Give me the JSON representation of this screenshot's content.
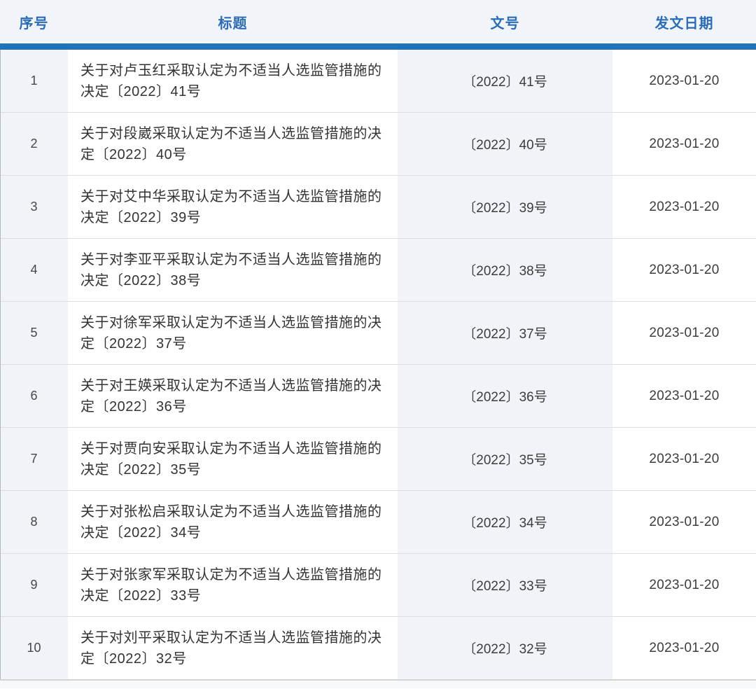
{
  "table": {
    "headers": [
      "序号",
      "标题",
      "文号",
      "发文日期"
    ],
    "rows": [
      {
        "index": "1",
        "title": "关于对卢玉红采取认定为不适当人选监管措施的决定〔2022〕41号",
        "doc_no": "〔2022〕41号",
        "date": "2023-01-20"
      },
      {
        "index": "2",
        "title": "关于对段崴采取认定为不适当人选监管措施的决定〔2022〕40号",
        "doc_no": "〔2022〕40号",
        "date": "2023-01-20"
      },
      {
        "index": "3",
        "title": "关于对艾中华采取认定为不适当人选监管措施的决定〔2022〕39号",
        "doc_no": "〔2022〕39号",
        "date": "2023-01-20"
      },
      {
        "index": "4",
        "title": "关于对李亚平采取认定为不适当人选监管措施的决定〔2022〕38号",
        "doc_no": "〔2022〕38号",
        "date": "2023-01-20"
      },
      {
        "index": "5",
        "title": "关于对徐军采取认定为不适当人选监管措施的决定〔2022〕37号",
        "doc_no": "〔2022〕37号",
        "date": "2023-01-20"
      },
      {
        "index": "6",
        "title": "关于对王媖采取认定为不适当人选监管措施的决定〔2022〕36号",
        "doc_no": "〔2022〕36号",
        "date": "2023-01-20"
      },
      {
        "index": "7",
        "title": "关于对贾向安采取认定为不适当人选监管措施的决定〔2022〕35号",
        "doc_no": "〔2022〕35号",
        "date": "2023-01-20"
      },
      {
        "index": "8",
        "title": "关于对张松启采取认定为不适当人选监管措施的决定〔2022〕34号",
        "doc_no": "〔2022〕34号",
        "date": "2023-01-20"
      },
      {
        "index": "9",
        "title": "关于对张家军采取认定为不适当人选监管措施的决定〔2022〕33号",
        "doc_no": "〔2022〕33号",
        "date": "2023-01-20"
      },
      {
        "index": "10",
        "title": "关于对刘平采取认定为不适当人选监管措施的决定〔2022〕32号",
        "doc_no": "〔2022〕32号",
        "date": "2023-01-20"
      }
    ],
    "colors": {
      "accent_bar": "#2173b8",
      "header_text": "#2b6cb4",
      "column_tint": "#f0f4f8",
      "header_background": "#f1f5f9",
      "row_divider": "#dcdee1",
      "body_text": "#333333"
    }
  }
}
